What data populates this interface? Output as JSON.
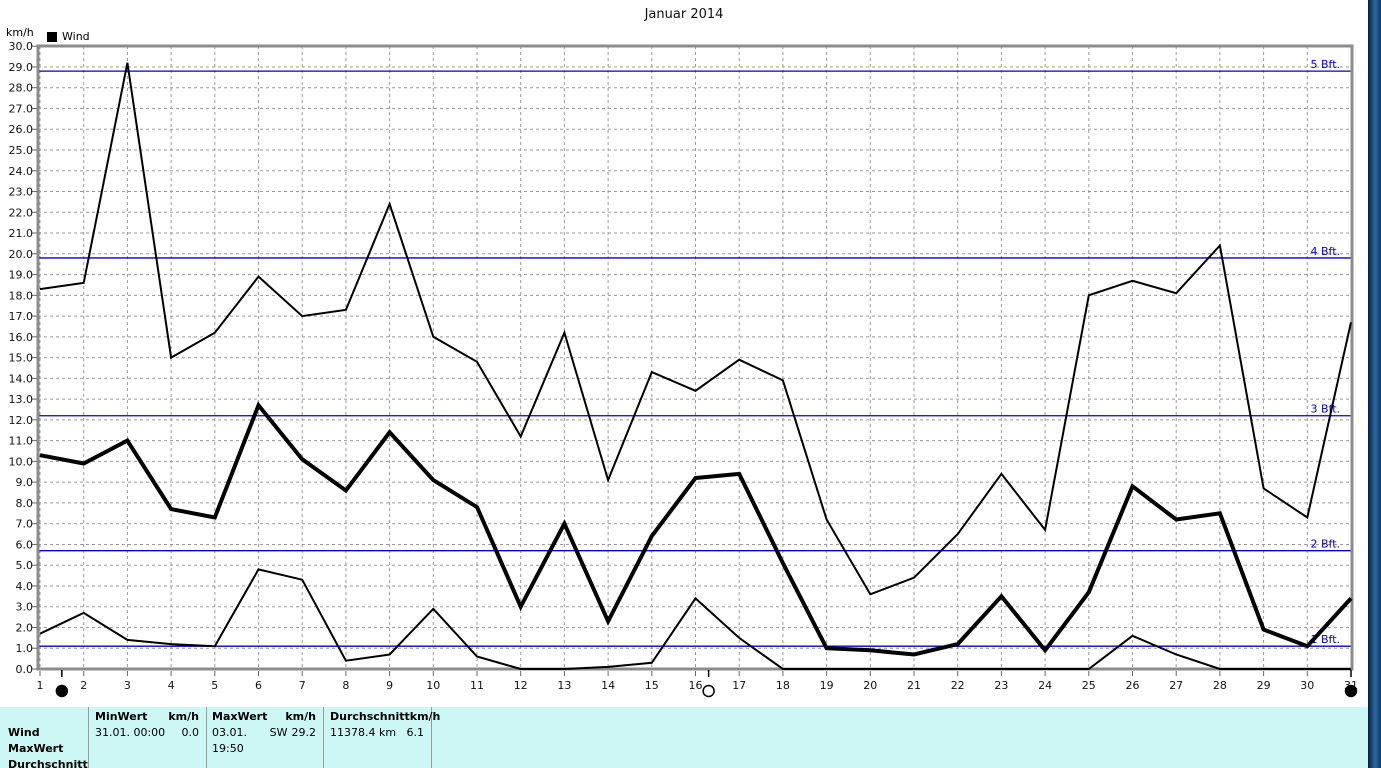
{
  "title": "Januar 2014",
  "chart_data": {
    "type": "line",
    "title": "Januar 2014",
    "ylabel": "km/h",
    "legend_label": "Wind",
    "legend_position": "top-left",
    "grid": true,
    "ylim": [
      0,
      30
    ],
    "ytick_step": 1,
    "x": [
      1,
      2,
      3,
      4,
      5,
      6,
      7,
      8,
      9,
      10,
      11,
      12,
      13,
      14,
      15,
      16,
      17,
      18,
      19,
      20,
      21,
      22,
      23,
      24,
      25,
      26,
      27,
      28,
      29,
      30,
      31
    ],
    "series": [
      {
        "name": "daily-max",
        "role": "max",
        "stroke_width": 2,
        "values": [
          18.3,
          18.6,
          29.2,
          15.0,
          16.2,
          18.9,
          17.0,
          17.3,
          22.4,
          16.0,
          14.8,
          11.2,
          16.2,
          9.1,
          14.3,
          13.4,
          14.9,
          13.9,
          7.2,
          3.6,
          4.4,
          6.5,
          9.4,
          6.7,
          18.0,
          18.7,
          18.1,
          20.4,
          8.7,
          7.3,
          16.7
        ]
      },
      {
        "name": "daily-mean",
        "role": "average",
        "stroke_width": 4,
        "values": [
          10.3,
          9.9,
          11.0,
          7.7,
          7.3,
          12.7,
          10.1,
          8.6,
          11.4,
          9.1,
          7.8,
          3.0,
          7.0,
          2.3,
          6.4,
          9.2,
          9.4,
          5.1,
          1.0,
          0.9,
          0.7,
          1.2,
          3.5,
          0.9,
          3.7,
          8.8,
          7.2,
          7.5,
          1.9,
          1.1,
          3.4
        ]
      },
      {
        "name": "daily-min",
        "role": "min",
        "stroke_width": 2,
        "values": [
          1.7,
          2.7,
          1.4,
          1.2,
          1.1,
          4.8,
          4.3,
          0.4,
          0.7,
          2.9,
          0.6,
          0.0,
          0.0,
          0.1,
          0.3,
          3.4,
          1.5,
          0.0,
          0.0,
          0.0,
          0.0,
          0.0,
          0.0,
          0.0,
          0.0,
          1.6,
          0.7,
          0.0,
          0.0,
          0.0,
          0.0
        ]
      }
    ],
    "beaufort_lines": [
      {
        "label": "1 Bft.",
        "kmh": 1.1
      },
      {
        "label": "2 Bft.",
        "kmh": 5.7
      },
      {
        "label": "3 Bft.",
        "kmh": 12.2
      },
      {
        "label": "4 Bft.",
        "kmh": 19.8
      },
      {
        "label": "5 Bft.",
        "kmh": 28.8
      }
    ],
    "moon_markers": [
      {
        "day": 1.5,
        "phase": "new-moon",
        "symbol": "filled-circle"
      },
      {
        "day": 16.3,
        "phase": "full-moon",
        "symbol": "open-circle"
      },
      {
        "day": 31,
        "phase": "new-moon",
        "symbol": "filled-circle"
      }
    ],
    "colors": {
      "series": "#000000",
      "beaufort_line": "#0000cc",
      "beaufort_text": "#0000cc",
      "grid": "#999999",
      "border": "#8c8c8c",
      "summary_background": "#ccf7f4"
    }
  },
  "summary_table": {
    "row_labels": [
      "Wind",
      "MaxWert",
      "Durchschnitt"
    ],
    "columns": [
      {
        "header": "MinWert",
        "unit": "km/h",
        "date": "31.01.  00:00",
        "direction": "",
        "value": "0.0"
      },
      {
        "header": "MaxWert",
        "unit": "km/h",
        "date": "03.01.  19:50",
        "direction": "SW",
        "value": "29.2"
      },
      {
        "header": "Durchschnitt",
        "unit": "km/h",
        "date": "11378.4 km",
        "direction": "",
        "value": "6.1"
      }
    ]
  }
}
